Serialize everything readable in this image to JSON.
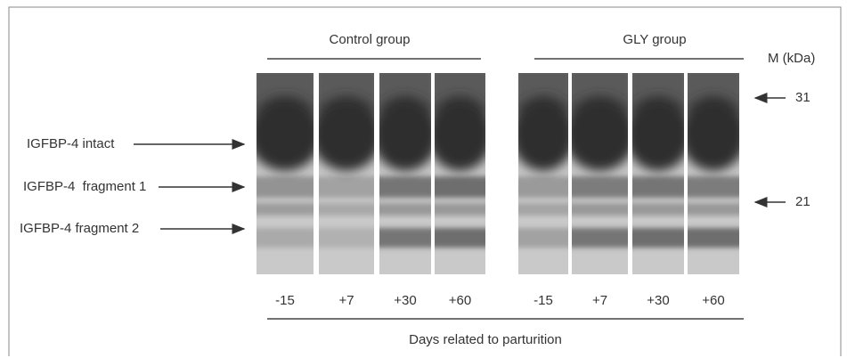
{
  "groups": [
    {
      "label": "Control group",
      "lanes": [
        "-15",
        "+7",
        "+30",
        "+60"
      ]
    },
    {
      "label": "GLY group",
      "lanes": [
        "-15",
        "+7",
        "+30",
        "+60"
      ]
    }
  ],
  "bands": [
    "IGFBP-4 intact",
    "IGFBP-4  fragment 1",
    "IGFBP-4 fragment 2"
  ],
  "markers": {
    "title": "M (kDa)",
    "labels": [
      "31",
      "21"
    ]
  },
  "x_axis_label": "Days related to parturition"
}
